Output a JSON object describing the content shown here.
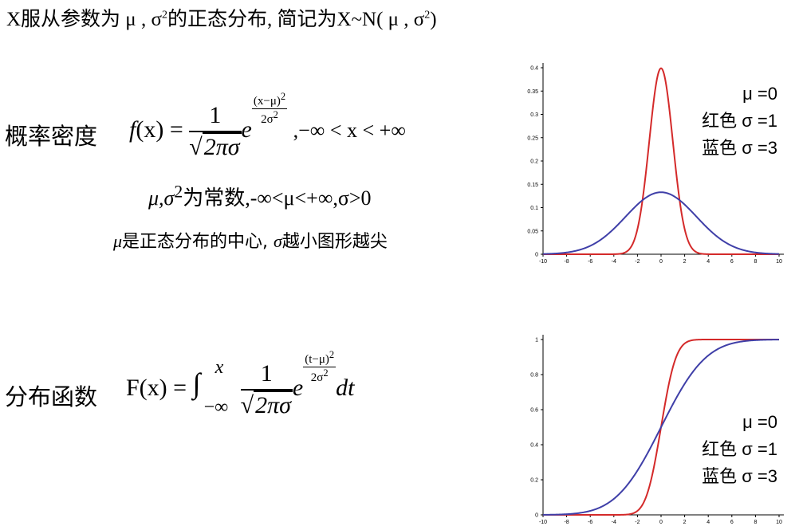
{
  "title": {
    "prefix": "X服从参数为 μ , σ",
    "sup": "2",
    "middle": "的正态分布, 简记为X~N( μ , σ",
    "sup2": "2",
    "suffix": ")"
  },
  "pdf": {
    "label": "概率密度",
    "lhs": "f",
    "lhs_arg": "(x)",
    "eq": " =",
    "numerator": "1",
    "sqrt_content": "2πσ",
    "e": "e",
    "exp_num": "(x−μ)",
    "exp_num_sup": "2",
    "exp_den": "2σ",
    "exp_den_sup": "2",
    "domain": ",−∞ < x < +∞",
    "params": "μ,σ",
    "params_sup": "2",
    "params_rest": "为常数,-∞<μ<+∞,σ>0",
    "note_mu": "μ",
    "note_mid": "是正态分布的中心, ",
    "note_sigma": "σ",
    "note_end": "越小图形越尖"
  },
  "cdf": {
    "label": "分布函数",
    "lhs": "F(x) = ",
    "integral": "∫",
    "upper": "x",
    "lower": "−∞",
    "numerator": "1",
    "sqrt_content": "2πσ",
    "e": "e",
    "exp_num": "(t−μ)",
    "exp_num_sup": "2",
    "exp_den": "2σ",
    "exp_den_sup": "2",
    "dt": "dt"
  },
  "chart_data": [
    {
      "type": "line",
      "xlim": [
        -10,
        10
      ],
      "ylim": [
        0,
        0.4
      ],
      "xticks": [
        -10,
        -8,
        -6,
        -4,
        -2,
        0,
        2,
        4,
        6,
        8,
        10
      ],
      "yticks": [
        "0",
        "0.05",
        "0.1",
        "0.15",
        "0.2",
        "0.25",
        "0.3",
        "0.35",
        "0.4"
      ],
      "ytick_values": [
        0,
        0.05,
        0.1,
        0.15,
        0.2,
        0.25,
        0.3,
        0.35,
        0.4
      ],
      "series": [
        {
          "function": "normal_pdf",
          "mu": 0,
          "sigma": 1,
          "color": "#d42a2a"
        },
        {
          "function": "normal_pdf",
          "mu": 0,
          "sigma": 3,
          "color": "#3f3fa8"
        }
      ],
      "legend": [
        "μ =0",
        "红色 σ =1",
        "蓝色 σ =3"
      ]
    },
    {
      "type": "line",
      "xlim": [
        -10,
        10
      ],
      "ylim": [
        0,
        1
      ],
      "xticks": [
        -10,
        -8,
        -6,
        -4,
        -2,
        0,
        2,
        4,
        6,
        8,
        10
      ],
      "yticks": [
        "0",
        "0.2",
        "0.4",
        "0.6",
        "0.8",
        "1"
      ],
      "ytick_values": [
        0,
        0.2,
        0.4,
        0.6,
        0.8,
        1
      ],
      "series": [
        {
          "function": "normal_cdf",
          "mu": 0,
          "sigma": 1,
          "color": "#d42a2a"
        },
        {
          "function": "normal_cdf",
          "mu": 0,
          "sigma": 3,
          "color": "#3f3fa8"
        }
      ],
      "legend": [
        "μ =0",
        "红色 σ =1",
        "蓝色 σ =3"
      ]
    }
  ]
}
